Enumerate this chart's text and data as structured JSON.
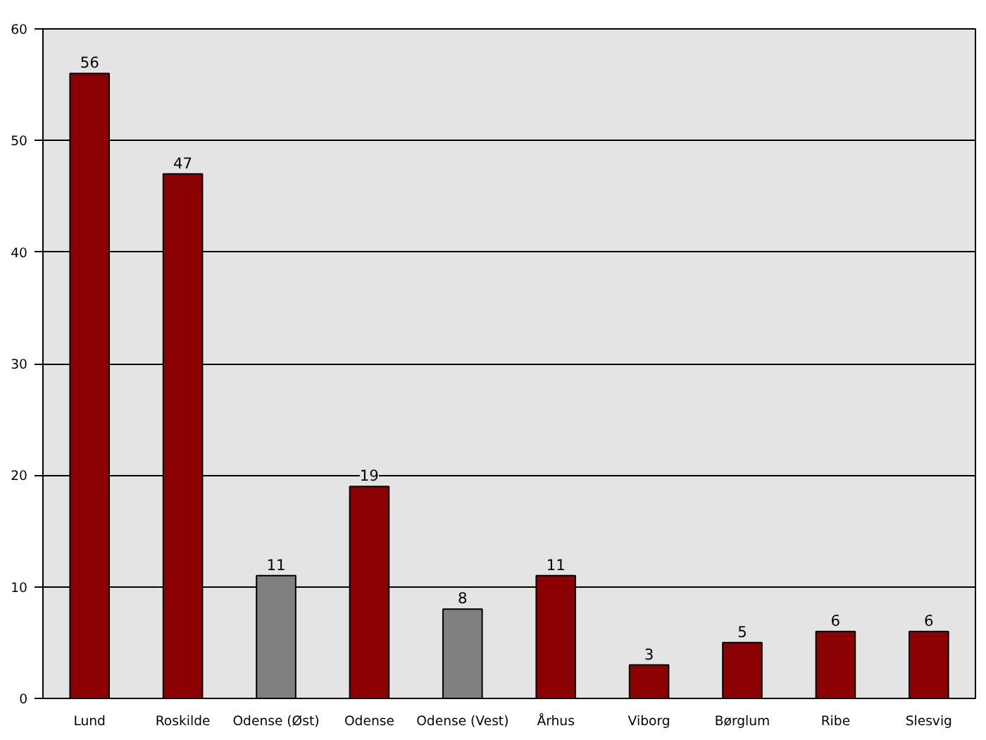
{
  "chart_data": {
    "type": "bar",
    "categories": [
      "Lund",
      "Roskilde",
      "Odense (Øst)",
      "Odense",
      "Odense (Vest)",
      "Århus",
      "Viborg",
      "Børglum",
      "Ribe",
      "Slesvig"
    ],
    "values": [
      56,
      47,
      11,
      19,
      8,
      11,
      3,
      5,
      6,
      6
    ],
    "colors": [
      "#8b0000",
      "#8b0000",
      "#808080",
      "#8b0000",
      "#808080",
      "#8b0000",
      "#8b0000",
      "#8b0000",
      "#8b0000",
      "#8b0000"
    ],
    "ylim": [
      0,
      60
    ],
    "yticks": [
      0,
      10,
      20,
      30,
      40,
      50,
      60
    ],
    "grid": "y",
    "data_labels": true
  }
}
